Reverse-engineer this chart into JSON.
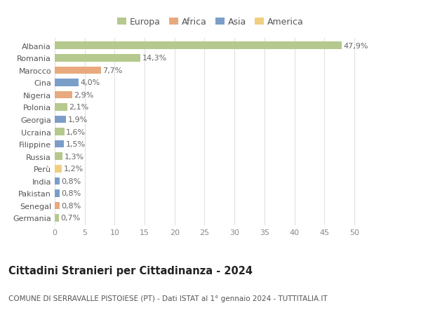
{
  "countries": [
    "Albania",
    "Romania",
    "Marocco",
    "Cina",
    "Nigeria",
    "Polonia",
    "Georgia",
    "Ucraina",
    "Filippine",
    "Russia",
    "Perù",
    "India",
    "Pakistan",
    "Senegal",
    "Germania"
  ],
  "values": [
    47.9,
    14.3,
    7.7,
    4.0,
    2.9,
    2.1,
    1.9,
    1.6,
    1.5,
    1.3,
    1.2,
    0.8,
    0.8,
    0.8,
    0.7
  ],
  "labels": [
    "47,9%",
    "14,3%",
    "7,7%",
    "4,0%",
    "2,9%",
    "2,1%",
    "1,9%",
    "1,6%",
    "1,5%",
    "1,3%",
    "1,2%",
    "0,8%",
    "0,8%",
    "0,8%",
    "0,7%"
  ],
  "continents": [
    "Europa",
    "Europa",
    "Africa",
    "Asia",
    "Africa",
    "Europa",
    "Asia",
    "Europa",
    "Asia",
    "Europa",
    "America",
    "Asia",
    "Asia",
    "Africa",
    "Europa"
  ],
  "continent_colors": {
    "Europa": "#b5c98e",
    "Africa": "#e8a97e",
    "Asia": "#7b9ec9",
    "America": "#f0d080"
  },
  "legend_order": [
    "Europa",
    "Africa",
    "Asia",
    "America"
  ],
  "title": "Cittadini Stranieri per Cittadinanza - 2024",
  "subtitle": "COMUNE DI SERRAVALLE PISTOIESE (PT) - Dati ISTAT al 1° gennaio 2024 - TUTTITALIA.IT",
  "xlim": [
    0,
    52
  ],
  "xticks": [
    0,
    5,
    10,
    15,
    20,
    25,
    30,
    35,
    40,
    45,
    50
  ],
  "bg_color": "#ffffff",
  "grid_color": "#e0e0e0",
  "bar_height": 0.6,
  "label_fontsize": 8,
  "tick_fontsize": 8,
  "title_fontsize": 10.5,
  "subtitle_fontsize": 7.5
}
